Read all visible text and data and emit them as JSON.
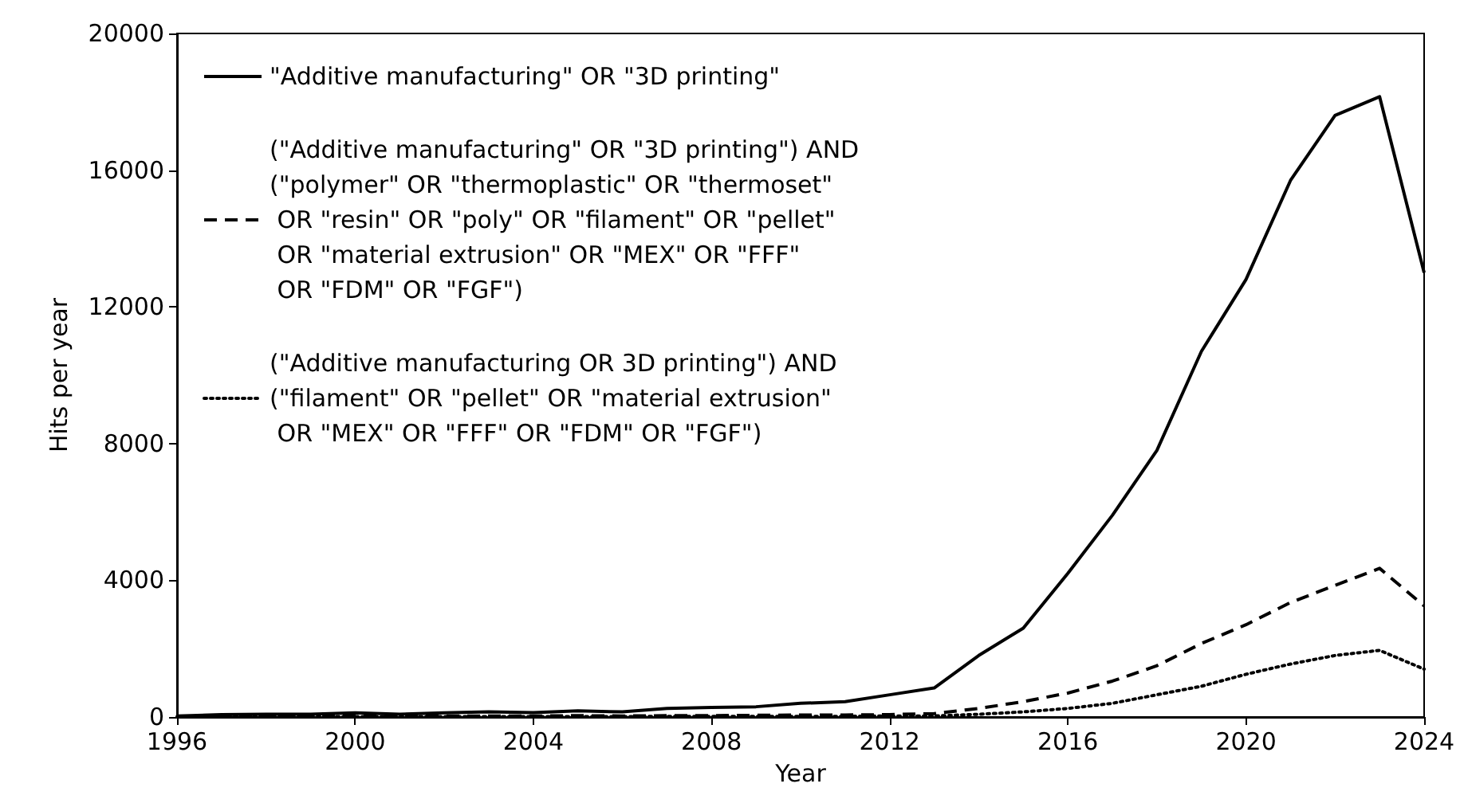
{
  "chart_data": {
    "type": "line",
    "xlabel": "Year",
    "ylabel": "Hits per year",
    "x": [
      1996,
      1997,
      1998,
      1999,
      2000,
      2001,
      2002,
      2003,
      2004,
      2005,
      2006,
      2007,
      2008,
      2009,
      2010,
      2011,
      2012,
      2013,
      2014,
      2015,
      2016,
      2017,
      2018,
      2019,
      2020,
      2021,
      2022,
      2023,
      2024
    ],
    "series": [
      {
        "name": "\"Additive manufacturing\" OR \"3D printing\"",
        "color": "#000000",
        "line_style": "solid",
        "values": [
          30,
          70,
          80,
          80,
          120,
          80,
          120,
          150,
          130,
          180,
          150,
          250,
          280,
          300,
          400,
          450,
          650,
          850,
          1800,
          2600,
          4200,
          5900,
          7800,
          10700,
          12800,
          15700,
          17600,
          18150,
          13000
        ]
      },
      {
        "name": "(\"Additive manufacturing\" OR \"3D printing\") AND\n(\"polymer\" OR \"thermoplastic\" OR \"thermoset\"\n OR \"resin\" OR \"poly\" OR \"filament\" OR \"pellet\"\n OR \"material extrusion\" OR \"MEX\" OR \"FFF\"\n OR \"FDM\" OR \"FGF\")",
        "color": "#000000",
        "line_style": "dashed",
        "values": [
          10,
          20,
          20,
          20,
          30,
          20,
          30,
          30,
          30,
          40,
          30,
          40,
          40,
          50,
          60,
          60,
          70,
          100,
          250,
          450,
          700,
          1050,
          1500,
          2150,
          2700,
          3350,
          3850,
          4350,
          3250
        ]
      },
      {
        "name": "(\"Additive manufacturing OR 3D printing\") AND\n(\"filament\" OR \"pellet\" OR \"material extrusion\"\n OR \"MEX\" OR \"FFF\" OR \"FDM\" OR \"FGF\")",
        "color": "#000000",
        "line_style": "dotted",
        "values": [
          10,
          10,
          10,
          10,
          10,
          10,
          10,
          10,
          10,
          10,
          10,
          20,
          20,
          20,
          20,
          20,
          30,
          30,
          80,
          150,
          250,
          400,
          650,
          900,
          1250,
          1550,
          1800,
          1950,
          1400
        ]
      }
    ],
    "xlim": [
      1996,
      2024
    ],
    "xticks": [
      1996,
      2000,
      2004,
      2008,
      2012,
      2016,
      2020,
      2024
    ],
    "ylim": [
      0,
      20000
    ],
    "yticks": [
      0,
      4000,
      8000,
      12000,
      16000,
      20000
    ],
    "grid": false,
    "legend": "top left",
    "marker": "none"
  }
}
